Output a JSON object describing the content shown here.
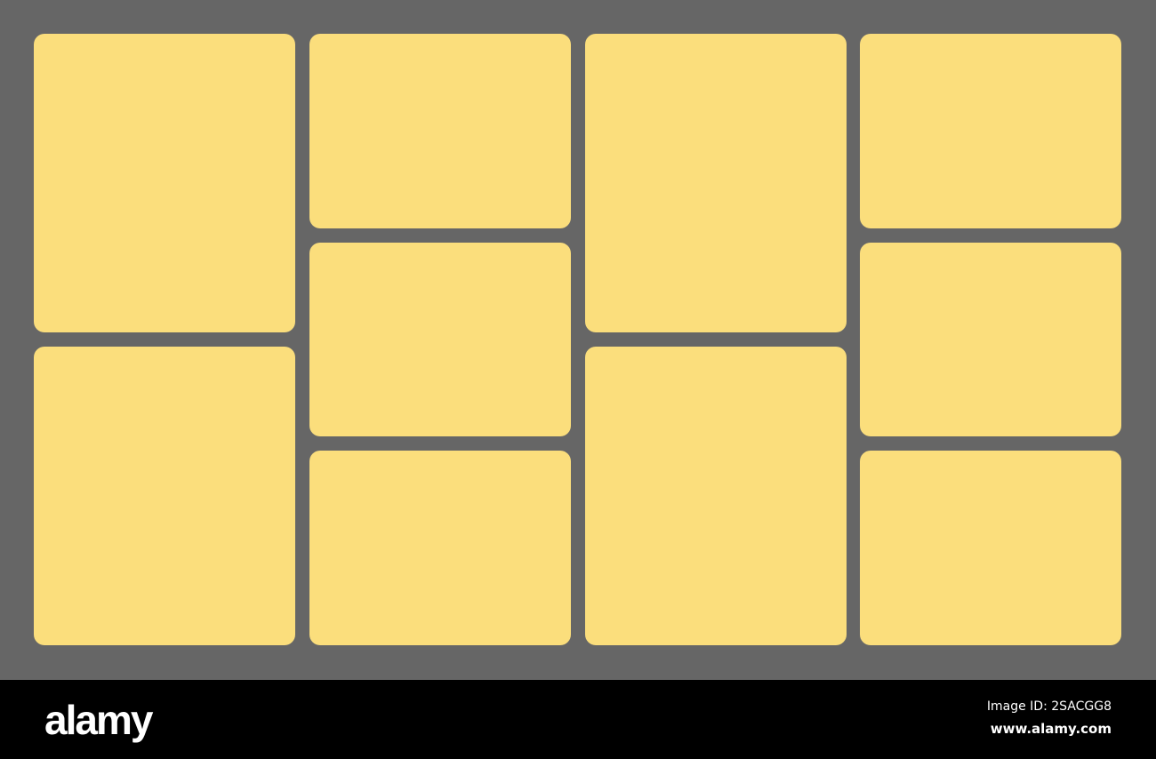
{
  "colors": {
    "background": "#666666",
    "tile": "#FBDE7C",
    "footer": "#000000"
  },
  "grid": {
    "columns": [
      {
        "tiles": 2
      },
      {
        "tiles": 3
      },
      {
        "tiles": 2
      },
      {
        "tiles": 3
      }
    ]
  },
  "footer": {
    "logo": "alamy",
    "image_id": "Image ID: 2SACGG8",
    "url": "www.alamy.com"
  }
}
